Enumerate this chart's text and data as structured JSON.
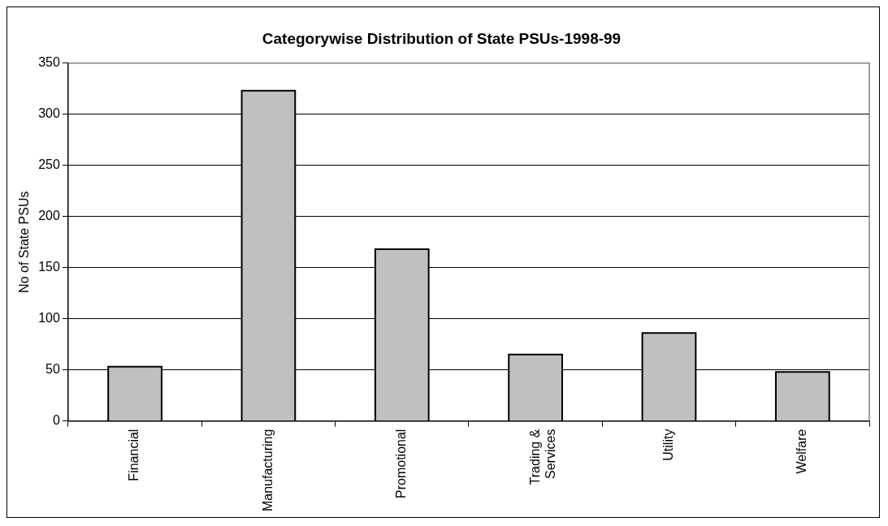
{
  "chart_data": {
    "type": "bar",
    "title": "Categorywise Distribution of State PSUs-1998-99",
    "ylabel": "No of State PSUs",
    "categories": [
      "Financial",
      "Manufacturing",
      "Promotional",
      "Trading & Services",
      "Utility",
      "Welfare"
    ],
    "values": [
      53,
      323,
      168,
      65,
      86,
      48
    ],
    "color": "#c0c0c0",
    "ylim": [
      0,
      350
    ],
    "yticks": [
      0,
      50,
      100,
      150,
      200,
      250,
      300,
      350
    ],
    "grid": "y",
    "legend": false
  }
}
